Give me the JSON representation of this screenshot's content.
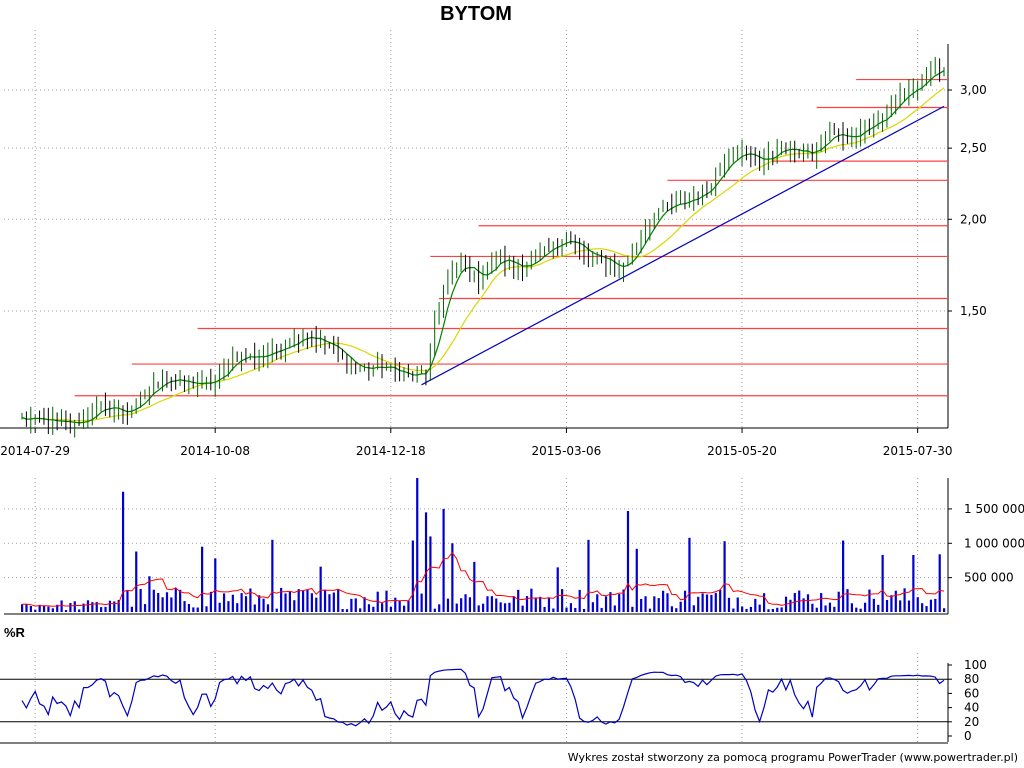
{
  "chart_data": [
    {
      "panel": "price",
      "type": "candlestick",
      "title": "BYTOM",
      "x_tick_labels": [
        "2014-07-29",
        "2014-10-08",
        "2014-12-18",
        "2015-03-06",
        "2015-05-20",
        "2015-07-30"
      ],
      "y_tick_labels": [
        "3,00",
        "2,50",
        "2,00",
        "1,50"
      ],
      "y_ticks": [
        3.0,
        2.5,
        2.0,
        1.5
      ],
      "ylim": [
        1.0,
        3.4
      ],
      "y_scale": "log",
      "grid": "dotted",
      "colors": {
        "up": "#008000",
        "down": "#000000",
        "ma_fast": "#008000",
        "ma_slow": "#d8d800",
        "support": "#ff4040",
        "trend": "#0000c0"
      },
      "close_anchors": [
        [
          0,
          1.07
        ],
        [
          6,
          1.06
        ],
        [
          12,
          1.05
        ],
        [
          18,
          1.11
        ],
        [
          24,
          1.09
        ],
        [
          28,
          1.15
        ],
        [
          32,
          1.22
        ],
        [
          38,
          1.19
        ],
        [
          44,
          1.2
        ],
        [
          48,
          1.3
        ],
        [
          54,
          1.3
        ],
        [
          60,
          1.35
        ],
        [
          64,
          1.4
        ],
        [
          70,
          1.34
        ],
        [
          76,
          1.25
        ],
        [
          82,
          1.26
        ],
        [
          88,
          1.22
        ],
        [
          92,
          1.24
        ],
        [
          96,
          1.62
        ],
        [
          100,
          1.75
        ],
        [
          104,
          1.65
        ],
        [
          108,
          1.78
        ],
        [
          112,
          1.72
        ],
        [
          116,
          1.75
        ],
        [
          120,
          1.82
        ],
        [
          124,
          1.9
        ],
        [
          128,
          1.78
        ],
        [
          132,
          1.77
        ],
        [
          136,
          1.7
        ],
        [
          140,
          1.85
        ],
        [
          144,
          2.05
        ],
        [
          150,
          2.1
        ],
        [
          156,
          2.2
        ],
        [
          160,
          2.42
        ],
        [
          164,
          2.48
        ],
        [
          168,
          2.38
        ],
        [
          172,
          2.5
        ],
        [
          176,
          2.48
        ],
        [
          180,
          2.45
        ],
        [
          184,
          2.64
        ],
        [
          188,
          2.55
        ],
        [
          192,
          2.7
        ],
        [
          196,
          2.75
        ],
        [
          200,
          2.95
        ],
        [
          204,
          3.05
        ],
        [
          206,
          3.12
        ],
        [
          208,
          3.2
        ],
        [
          210,
          3.17
        ]
      ],
      "support_levels": [
        {
          "value": 1.15,
          "from": 12
        },
        {
          "value": 1.27,
          "from": 25
        },
        {
          "value": 1.42,
          "from": 40
        },
        {
          "value": 1.56,
          "from": 95
        },
        {
          "value": 1.78,
          "from": 93
        },
        {
          "value": 1.96,
          "from": 104
        },
        {
          "value": 2.26,
          "from": 147
        },
        {
          "value": 2.4,
          "from": 171
        },
        {
          "value": 2.84,
          "from": 181
        },
        {
          "value": 3.1,
          "from": 190
        }
      ],
      "trendline": {
        "from": [
          91,
          1.19
        ],
        "to": [
          210,
          2.85
        ]
      }
    },
    {
      "panel": "volume",
      "type": "bar",
      "y_tick_labels": [
        "1 500 000",
        "1 000 000",
        "500 000"
      ],
      "y_ticks": [
        1500000,
        1000000,
        500000
      ],
      "ylim": [
        0,
        1950000
      ],
      "bar_color": "#0000d0",
      "ma_color": "#ff0000",
      "spikes": [
        [
          23,
          1750000
        ],
        [
          26,
          880000
        ],
        [
          29,
          520000
        ],
        [
          41,
          950000
        ],
        [
          44,
          780000
        ],
        [
          57,
          1050000
        ],
        [
          68,
          660000
        ],
        [
          89,
          1040000
        ],
        [
          90,
          1950000
        ],
        [
          92,
          1450000
        ],
        [
          93,
          1100000
        ],
        [
          96,
          1500000
        ],
        [
          98,
          1000000
        ],
        [
          103,
          730000
        ],
        [
          122,
          650000
        ],
        [
          129,
          1050000
        ],
        [
          138,
          1470000
        ],
        [
          140,
          920000
        ],
        [
          152,
          1080000
        ],
        [
          160,
          1030000
        ],
        [
          187,
          1040000
        ],
        [
          196,
          830000
        ],
        [
          203,
          830000
        ],
        [
          209,
          840000
        ]
      ],
      "base_volume": 200000
    },
    {
      "panel": "williams-r",
      "type": "line",
      "label": "%R",
      "y_tick_labels": [
        "100",
        "80",
        "60",
        "40",
        "20",
        "0"
      ],
      "y_ticks": [
        100,
        80,
        60,
        40,
        20,
        0
      ],
      "ylim": [
        0,
        100
      ],
      "levels": [
        80,
        20
      ],
      "line_color": "#0000c0"
    }
  ],
  "footer": "Wykres został stworzony za pomocą programu PowerTrader (www.powertrader.pl)"
}
